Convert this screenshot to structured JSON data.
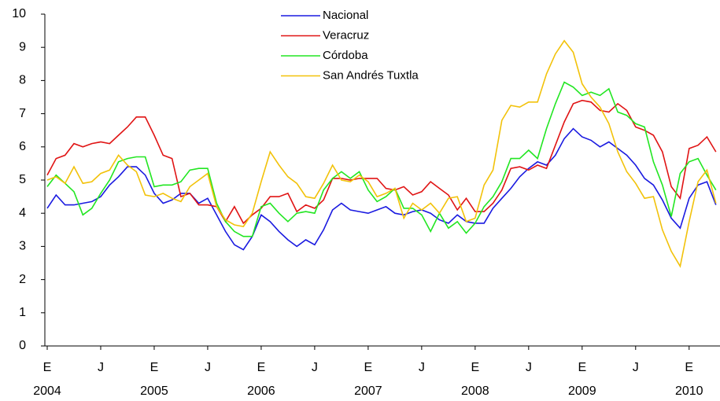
{
  "chart_data": {
    "type": "line",
    "categories": [
      "E",
      null,
      null,
      null,
      null,
      null,
      "J",
      null,
      null,
      null,
      null,
      null,
      "E",
      null,
      null,
      null,
      null,
      null,
      "J",
      null,
      null,
      null,
      null,
      null,
      "E",
      null,
      null,
      null,
      null,
      null,
      "J",
      null,
      null,
      null,
      null,
      null,
      "E",
      null,
      null,
      null,
      null,
      null,
      "J",
      null,
      null,
      null,
      null,
      null,
      "E",
      null,
      null,
      null,
      null,
      null,
      "J",
      null,
      null,
      null,
      null,
      null,
      "E",
      null,
      null,
      null,
      null,
      null,
      "J",
      null,
      null,
      null,
      null,
      null,
      "E",
      null,
      null,
      null
    ],
    "years": [
      "2004",
      "2005",
      "2006",
      "2007",
      "2008",
      "2009",
      "2010"
    ],
    "ylim": [
      0,
      10
    ],
    "yticks": [
      0,
      1,
      2,
      3,
      4,
      5,
      6,
      7,
      8,
      9,
      10
    ],
    "series": [
      {
        "name": "Nacional",
        "color": "#1a1ae0",
        "values": [
          4.15,
          4.55,
          4.25,
          4.25,
          4.3,
          4.35,
          4.5,
          4.85,
          5.1,
          5.4,
          5.4,
          5.15,
          4.6,
          4.3,
          4.4,
          4.6,
          4.6,
          4.3,
          4.45,
          3.95,
          3.45,
          3.05,
          2.9,
          3.3,
          3.95,
          3.75,
          3.45,
          3.2,
          3.0,
          3.2,
          3.05,
          3.5,
          4.1,
          4.3,
          4.1,
          4.05,
          4.0,
          4.1,
          4.2,
          4.0,
          3.95,
          4.05,
          4.1,
          4.0,
          3.8,
          3.7,
          3.95,
          3.75,
          3.7,
          3.7,
          4.15,
          4.45,
          4.75,
          5.1,
          5.35,
          5.55,
          5.45,
          5.75,
          6.25,
          6.55,
          6.3,
          6.2,
          6.0,
          6.15,
          5.95,
          5.75,
          5.45,
          5.05,
          4.85,
          4.4,
          3.85,
          3.55,
          4.45,
          4.85,
          4.95,
          4.25
        ]
      },
      {
        "name": "Veracruz",
        "color": "#e01414",
        "values": [
          5.15,
          5.65,
          5.75,
          6.1,
          6.0,
          6.1,
          6.15,
          6.1,
          6.35,
          6.6,
          6.9,
          6.9,
          6.35,
          5.75,
          5.65,
          4.5,
          4.6,
          4.25,
          4.25,
          4.2,
          3.75,
          4.2,
          3.7,
          3.95,
          4.15,
          4.5,
          4.5,
          4.6,
          4.05,
          4.25,
          4.15,
          4.4,
          5.05,
          5.05,
          5.0,
          5.05,
          5.05,
          5.05,
          4.75,
          4.7,
          4.8,
          4.55,
          4.65,
          4.95,
          4.75,
          4.55,
          4.1,
          4.45,
          4.05,
          4.05,
          4.3,
          4.7,
          5.35,
          5.4,
          5.3,
          5.45,
          5.35,
          6.05,
          6.75,
          7.3,
          7.4,
          7.35,
          7.1,
          7.05,
          7.3,
          7.1,
          6.6,
          6.5,
          6.35,
          5.85,
          4.8,
          4.45,
          5.95,
          6.05,
          6.3,
          5.85
        ]
      },
      {
        "name": "Córdoba",
        "color": "#22e622",
        "values": [
          4.8,
          5.15,
          4.9,
          4.65,
          3.95,
          4.15,
          4.6,
          5.0,
          5.55,
          5.65,
          5.7,
          5.7,
          4.8,
          4.85,
          4.85,
          4.95,
          5.3,
          5.35,
          5.35,
          4.3,
          3.75,
          3.45,
          3.3,
          3.3,
          4.2,
          4.3,
          4.0,
          3.75,
          4.0,
          4.05,
          4.0,
          4.7,
          5.05,
          5.25,
          5.05,
          5.25,
          4.7,
          4.35,
          4.5,
          4.75,
          4.15,
          4.15,
          3.95,
          3.45,
          4.0,
          3.55,
          3.75,
          3.4,
          3.7,
          4.2,
          4.5,
          4.95,
          5.65,
          5.65,
          5.9,
          5.65,
          6.55,
          7.3,
          7.95,
          7.8,
          7.55,
          7.65,
          7.55,
          7.75,
          7.05,
          6.95,
          6.7,
          6.6,
          5.55,
          4.85,
          3.9,
          5.2,
          5.55,
          5.65,
          5.15,
          4.7
        ]
      },
      {
        "name": "San Andrés Tuxtla",
        "color": "#f2c20a",
        "values": [
          5.0,
          5.1,
          4.9,
          5.4,
          4.9,
          4.95,
          5.2,
          5.3,
          5.75,
          5.45,
          5.25,
          4.55,
          4.5,
          4.6,
          4.45,
          4.35,
          4.8,
          5.0,
          5.2,
          4.2,
          3.8,
          3.65,
          3.6,
          4.0,
          4.95,
          5.85,
          5.45,
          5.1,
          4.9,
          4.5,
          4.45,
          4.9,
          5.45,
          5.0,
          4.95,
          5.15,
          4.95,
          4.5,
          4.6,
          4.75,
          3.85,
          4.3,
          4.1,
          4.3,
          4.0,
          4.45,
          4.5,
          3.75,
          3.85,
          4.85,
          5.3,
          6.8,
          7.25,
          7.2,
          7.35,
          7.35,
          8.2,
          8.8,
          9.2,
          8.85,
          7.9,
          7.5,
          7.2,
          6.7,
          5.85,
          5.25,
          4.9,
          4.45,
          4.5,
          3.5,
          2.85,
          2.4,
          3.75,
          4.95,
          5.3,
          4.3
        ]
      }
    ]
  }
}
